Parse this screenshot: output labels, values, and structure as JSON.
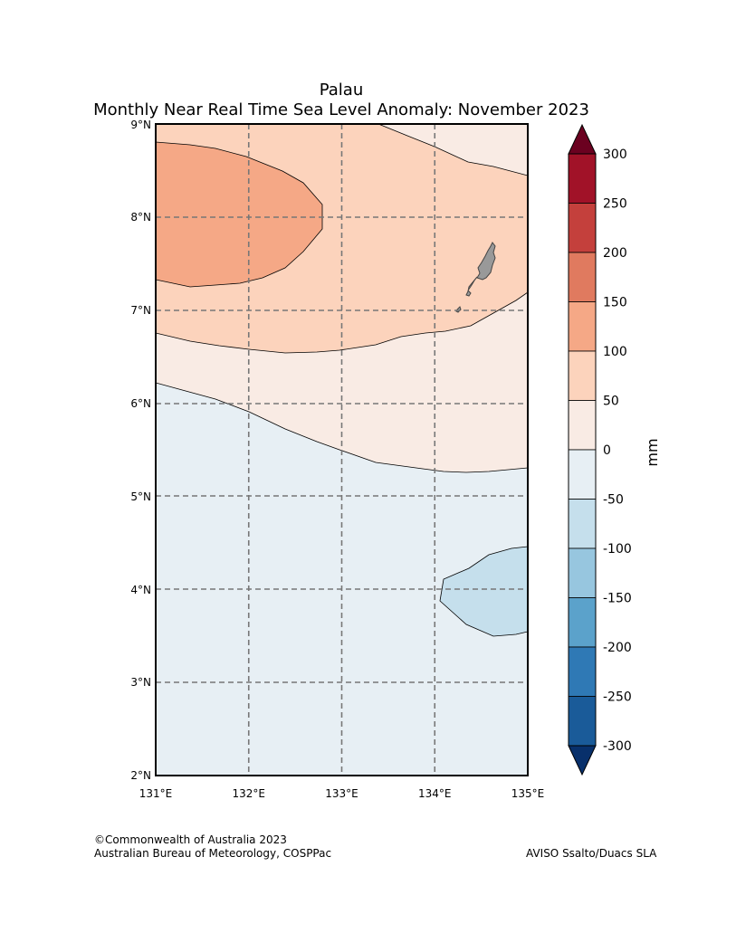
{
  "title": {
    "line1": "Palau",
    "line2": "Monthly Near Real Time Sea Level Anomaly: November 2023"
  },
  "map": {
    "lat_labels": [
      "9°N",
      "8°N",
      "7°N",
      "6°N",
      "5°N",
      "4°N",
      "3°N",
      "2°N"
    ],
    "lon_labels": [
      "131°E",
      "132°E",
      "133°E",
      "134°E",
      "135°E"
    ],
    "lat_range": [
      2,
      9
    ],
    "lon_range": [
      131,
      135
    ],
    "land_color": "#999999"
  },
  "colorbar": {
    "unit": "mm",
    "tick_labels": [
      "300",
      "250",
      "200",
      "150",
      "100",
      "50",
      "0",
      "-50",
      "-100",
      "-150",
      "-200",
      "-250",
      "-300"
    ],
    "colors": [
      "#a11228",
      "#c4403c",
      "#e07a5f",
      "#f5a886",
      "#fcd3bc",
      "#f9ebe4",
      "#e7eff4",
      "#c5dfec",
      "#97c6df",
      "#5ba2cb",
      "#2f79b5",
      "#1a5b99"
    ],
    "over_color": "#6b0120",
    "under_color": "#08306b"
  },
  "footer": {
    "copyright": "©Commonwealth of Australia 2023",
    "org": "Australian Bureau of Meteorology, COSPPac",
    "source": "AVISO Ssalto/Duacs SLA"
  }
}
